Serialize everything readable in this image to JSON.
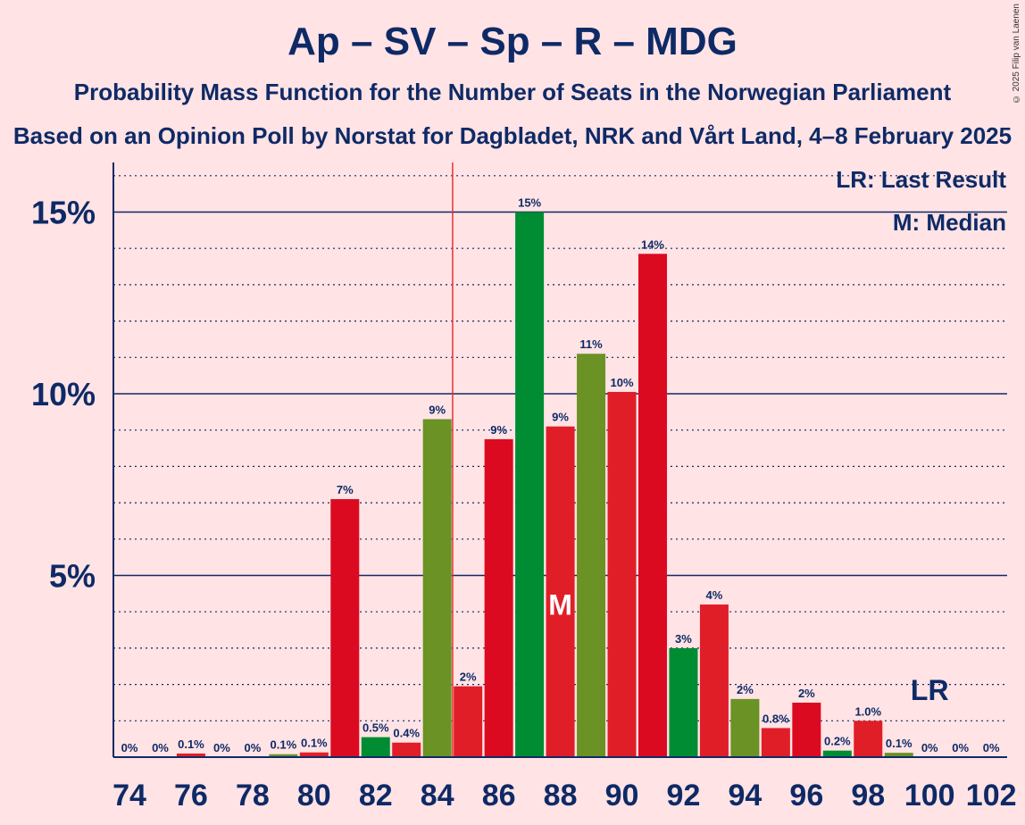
{
  "title": "Ap – SV – Sp – R – MDG",
  "subtitle": "Probability Mass Function for the Number of Seats in the Norwegian Parliament",
  "subtitle2": "Based on an Opinion Poll by Norstat for Dagbladet, NRK and Vårt Land, 4–8 February 2025",
  "copyright": "© 2025 Filip van Laenen",
  "legend": {
    "lr": "LR: Last Result",
    "median": "M: Median"
  },
  "markers": {
    "median_label": "M",
    "median_seat": 88,
    "last_result_label": "LR",
    "last_result_seat": 100,
    "threshold_line_seat": 84.5
  },
  "colors": {
    "bg": "#FFE3E5",
    "axis": "#0E2A66",
    "red": "#E01E28",
    "crimson": "#DC0A21",
    "green": "#008C32",
    "olive": "#6A9225",
    "threshold": "#E83030"
  },
  "chart_data": {
    "type": "bar",
    "xlabel": "",
    "ylabel": "",
    "ylim": [
      0,
      16.4
    ],
    "yticks": [
      {
        "v": 5,
        "label": "5%"
      },
      {
        "v": 10,
        "label": "10%"
      },
      {
        "v": 15,
        "label": "15%"
      }
    ],
    "xticks": [
      74,
      76,
      78,
      80,
      82,
      84,
      86,
      88,
      90,
      92,
      94,
      96,
      98,
      100,
      102
    ],
    "grid": "dotted every 1%, solid every 5%",
    "bars": [
      {
        "x": 74,
        "value": 0,
        "label": "0%",
        "color": "red"
      },
      {
        "x": 75,
        "value": 0,
        "label": "0%",
        "color": "red"
      },
      {
        "x": 76,
        "value": 0.1,
        "label": "0.1%",
        "color": "red"
      },
      {
        "x": 77,
        "value": 0,
        "label": "0%",
        "color": "red"
      },
      {
        "x": 78,
        "value": 0,
        "label": "0%",
        "color": "red"
      },
      {
        "x": 79,
        "value": 0.08,
        "label": "0.1%",
        "color": "olive"
      },
      {
        "x": 80,
        "value": 0.13,
        "label": "0.1%",
        "color": "red"
      },
      {
        "x": 81,
        "value": 7.1,
        "label": "7%",
        "color": "crimson"
      },
      {
        "x": 82,
        "value": 0.55,
        "label": "0.5%",
        "color": "green"
      },
      {
        "x": 83,
        "value": 0.4,
        "label": "0.4%",
        "color": "red"
      },
      {
        "x": 84,
        "value": 9.3,
        "label": "9%",
        "color": "olive"
      },
      {
        "x": 85,
        "value": 1.95,
        "label": "2%",
        "color": "red"
      },
      {
        "x": 86,
        "value": 8.75,
        "label": "9%",
        "color": "crimson"
      },
      {
        "x": 87,
        "value": 15.0,
        "label": "15%",
        "color": "green"
      },
      {
        "x": 88,
        "value": 9.1,
        "label": "9%",
        "color": "red"
      },
      {
        "x": 89,
        "value": 11.1,
        "label": "11%",
        "color": "olive"
      },
      {
        "x": 90,
        "value": 10.05,
        "label": "10%",
        "color": "red"
      },
      {
        "x": 91,
        "value": 13.85,
        "label": "14%",
        "color": "crimson"
      },
      {
        "x": 92,
        "value": 3.0,
        "label": "3%",
        "color": "green"
      },
      {
        "x": 93,
        "value": 4.2,
        "label": "4%",
        "color": "red"
      },
      {
        "x": 94,
        "value": 1.6,
        "label": "2%",
        "color": "olive"
      },
      {
        "x": 95,
        "value": 0.8,
        "label": "0.8%",
        "color": "red"
      },
      {
        "x": 96,
        "value": 1.5,
        "label": "2%",
        "color": "crimson"
      },
      {
        "x": 97,
        "value": 0.18,
        "label": "0.2%",
        "color": "green"
      },
      {
        "x": 98,
        "value": 1.0,
        "label": "1.0%",
        "color": "red"
      },
      {
        "x": 99,
        "value": 0.12,
        "label": "0.1%",
        "color": "olive"
      },
      {
        "x": 100,
        "value": 0,
        "label": "0%",
        "color": "red"
      },
      {
        "x": 101,
        "value": 0,
        "label": "0%",
        "color": "red"
      },
      {
        "x": 102,
        "value": 0,
        "label": "0%",
        "color": "red"
      }
    ]
  }
}
